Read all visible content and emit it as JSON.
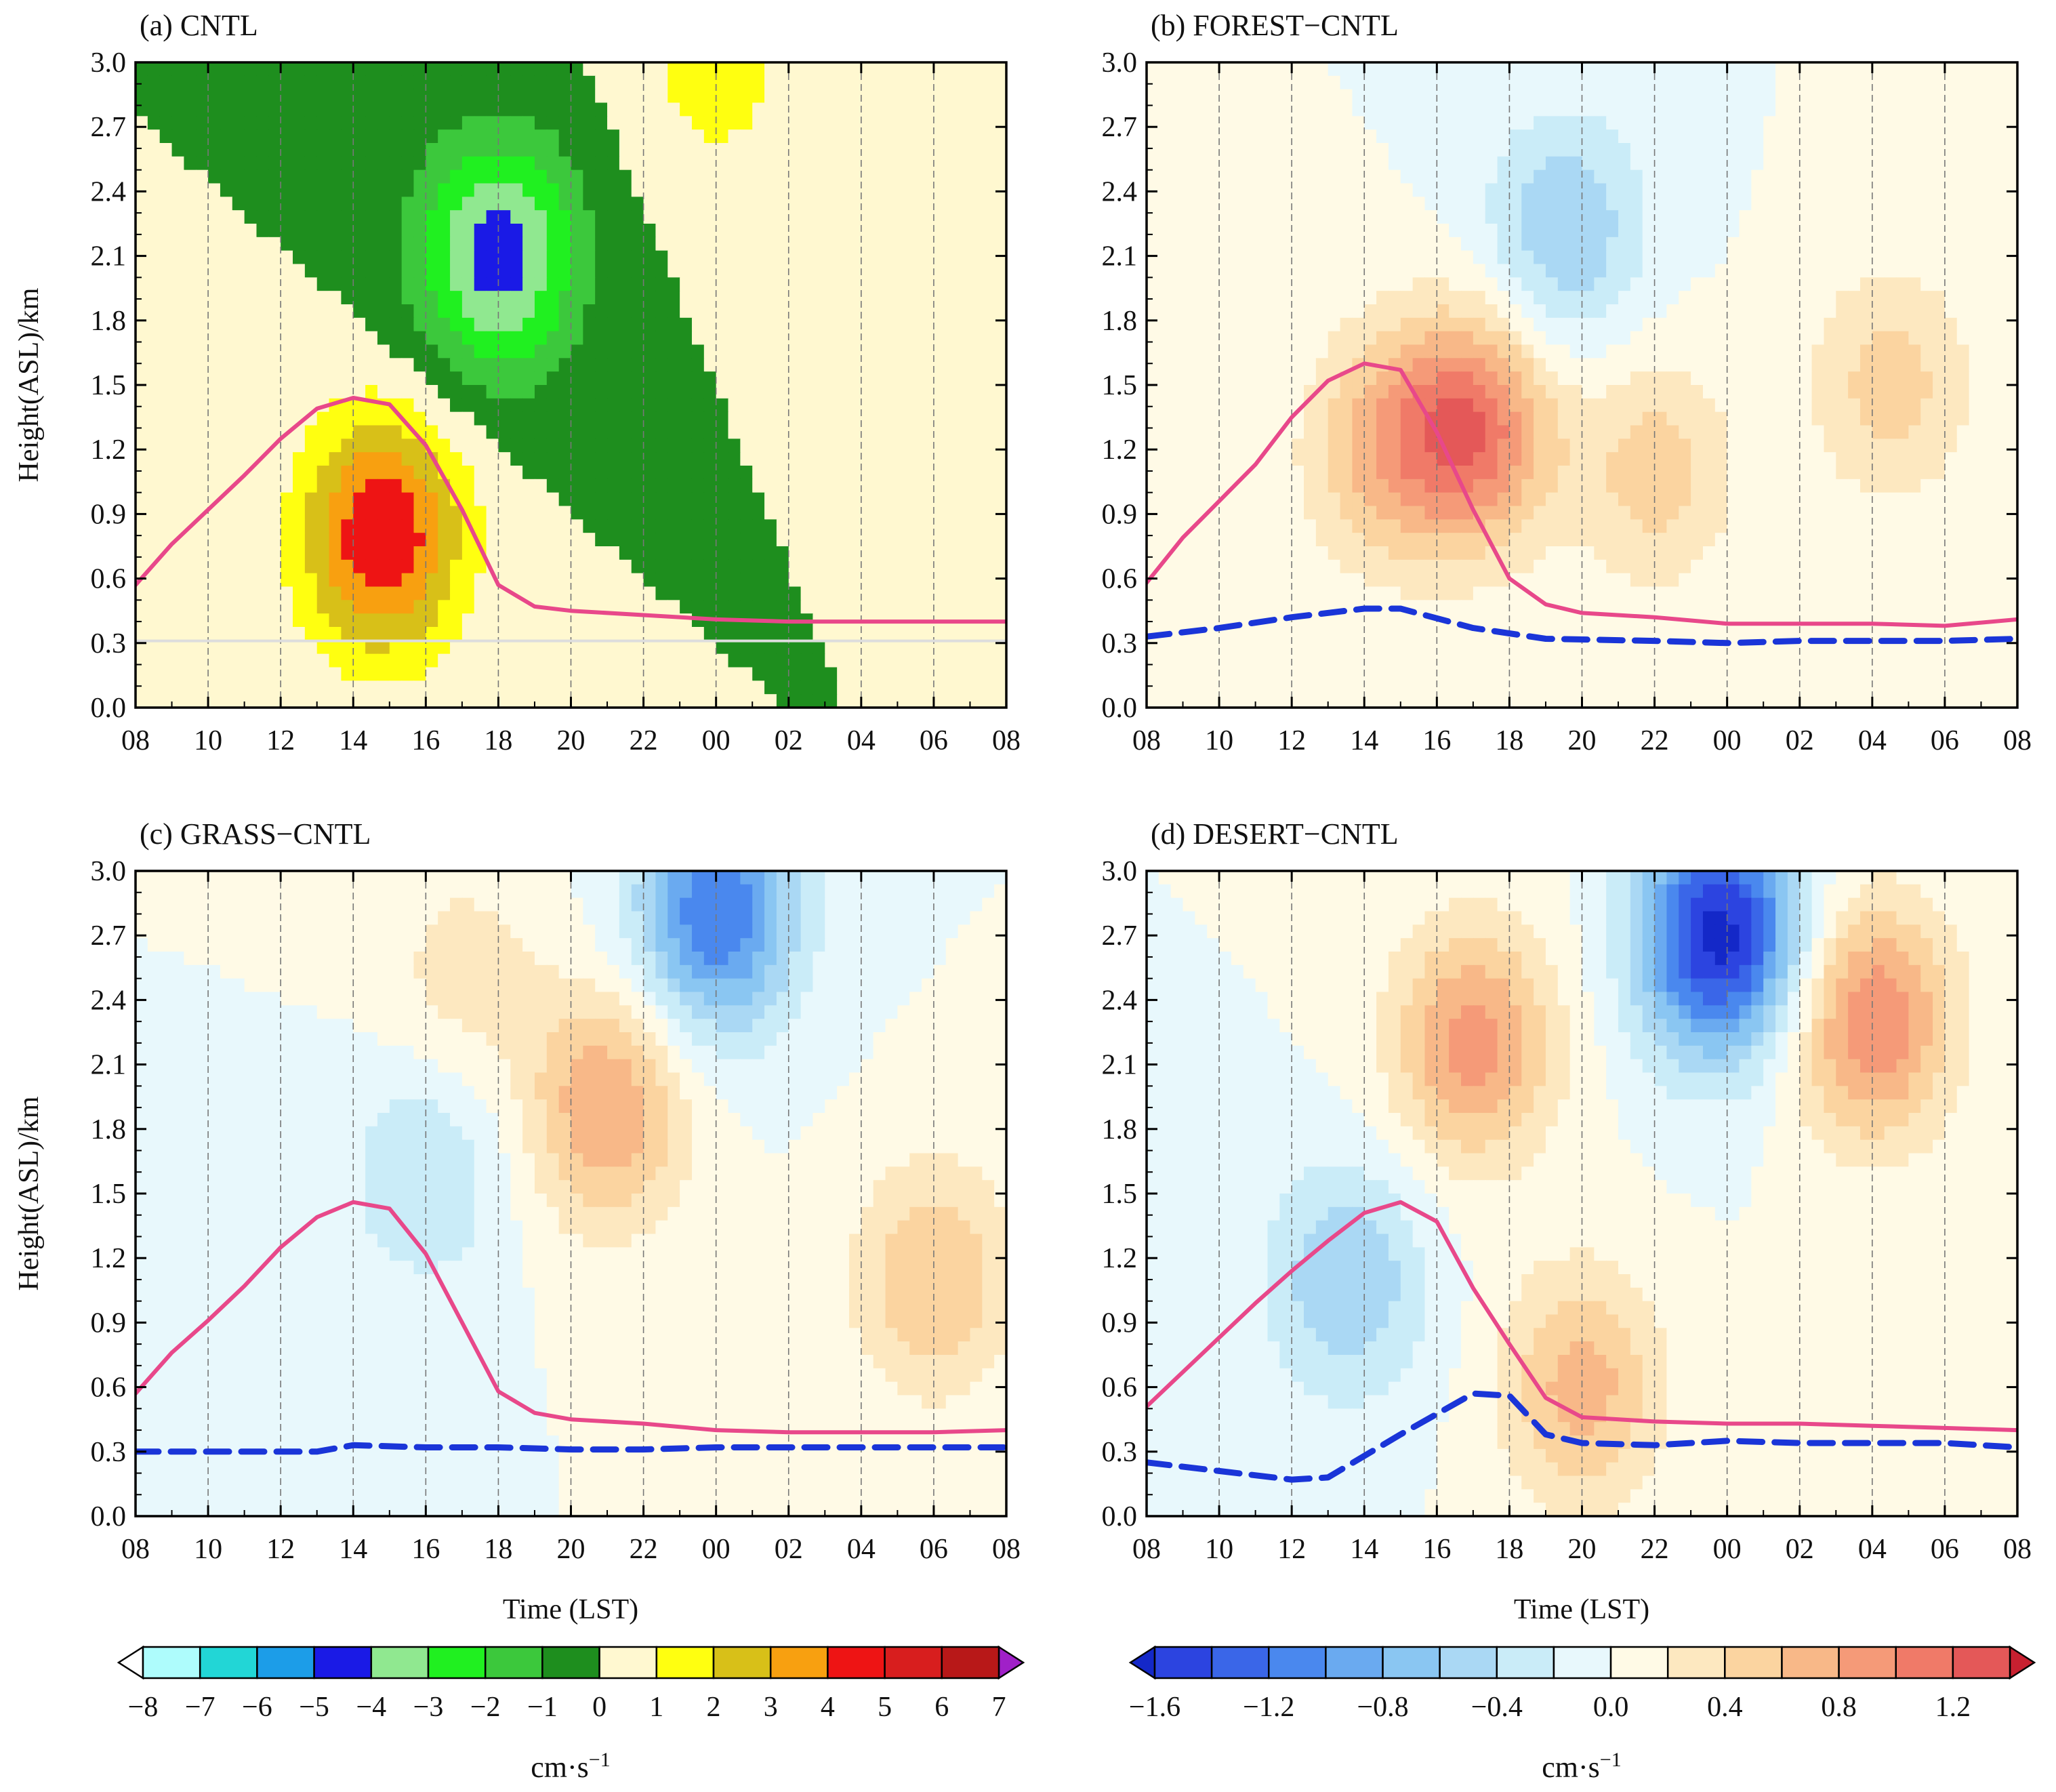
{
  "figure": {
    "time_axis_label": "Time (LST)",
    "height_axis_label": "Height(ASL)/km"
  },
  "chart_data": [
    {
      "type": "heatmap",
      "panel_title": "(a) CNTL",
      "xlabel": "",
      "ylabel": "Height(ASL)/km",
      "x_ticks": [
        "08",
        "10",
        "12",
        "14",
        "16",
        "18",
        "20",
        "22",
        "00",
        "02",
        "04",
        "06",
        "08"
      ],
      "x_hours": [
        0,
        2,
        4,
        6,
        8,
        10,
        12,
        14,
        16,
        18,
        20,
        22,
        24
      ],
      "y_ticks": [
        "0.0",
        "0.3",
        "0.6",
        "0.9",
        "1.2",
        "1.5",
        "1.8",
        "2.1",
        "2.4",
        "2.7",
        "3.0"
      ],
      "ylim": [
        0,
        3.0
      ],
      "xlim_hours": [
        0,
        24
      ],
      "colorbar": "w_full",
      "field_centers": [
        {
          "x": 6.8,
          "y": 0.8,
          "value": 5.0
        },
        {
          "x": 10.0,
          "y": 2.1,
          "value": -4.5
        },
        {
          "x": 16.0,
          "y": 3.0,
          "value": 1.5
        }
      ],
      "lines": [
        {
          "style": "solid",
          "color": "#e8488a",
          "x": [
            0,
            1,
            2,
            3,
            4,
            5,
            6,
            7,
            8,
            9,
            10,
            11,
            12,
            14,
            16,
            18,
            20,
            22,
            24
          ],
          "y": [
            0.57,
            0.76,
            0.92,
            1.08,
            1.25,
            1.39,
            1.44,
            1.41,
            1.22,
            0.92,
            0.57,
            0.47,
            0.45,
            0.43,
            0.41,
            0.4,
            0.4,
            0.4,
            0.4
          ]
        },
        {
          "style": "solid",
          "color": "#dddddd",
          "x": [
            0,
            24
          ],
          "y": [
            0.31,
            0.31
          ]
        }
      ]
    },
    {
      "type": "heatmap",
      "panel_title": "(b) FOREST−CNTL",
      "xlabel": "",
      "ylabel": "",
      "x_ticks": [
        "08",
        "10",
        "12",
        "14",
        "16",
        "18",
        "20",
        "22",
        "00",
        "02",
        "04",
        "06",
        "08"
      ],
      "x_hours": [
        0,
        2,
        4,
        6,
        8,
        10,
        12,
        14,
        16,
        18,
        20,
        22,
        24
      ],
      "y_ticks": [
        "0.0",
        "0.3",
        "0.6",
        "0.9",
        "1.2",
        "1.5",
        "1.8",
        "2.1",
        "2.4",
        "2.7",
        "3.0"
      ],
      "ylim": [
        0,
        3.0
      ],
      "xlim_hours": [
        0,
        24
      ],
      "colorbar": "diff",
      "field_centers": [
        {
          "x": 9.0,
          "y": 1.3,
          "value": 1.1
        },
        {
          "x": 6.5,
          "y": 1.2,
          "value": 0.6
        },
        {
          "x": 11.5,
          "y": 2.2,
          "value": -0.6
        },
        {
          "x": 14.0,
          "y": 1.1,
          "value": 0.5
        },
        {
          "x": 20.5,
          "y": 1.5,
          "value": 0.5
        }
      ],
      "lines": [
        {
          "style": "solid",
          "color": "#e8488a",
          "x": [
            0,
            1,
            2,
            3,
            4,
            5,
            6,
            7,
            8,
            9,
            10,
            11,
            12,
            14,
            16,
            18,
            20,
            22,
            24
          ],
          "y": [
            0.58,
            0.79,
            0.96,
            1.13,
            1.35,
            1.52,
            1.6,
            1.57,
            1.28,
            0.92,
            0.6,
            0.48,
            0.44,
            0.42,
            0.39,
            0.39,
            0.39,
            0.38,
            0.41
          ]
        },
        {
          "style": "dashed",
          "color": "#1a35d8",
          "x": [
            0,
            2,
            4,
            6,
            7,
            9,
            11,
            14,
            16,
            18,
            20,
            22,
            24
          ],
          "y": [
            0.33,
            0.37,
            0.42,
            0.46,
            0.46,
            0.37,
            0.32,
            0.31,
            0.3,
            0.31,
            0.31,
            0.31,
            0.32
          ]
        }
      ]
    },
    {
      "type": "heatmap",
      "panel_title": "(c) GRASS−CNTL",
      "xlabel": "Time (LST)",
      "ylabel": "Height(ASL)/km",
      "x_ticks": [
        "08",
        "10",
        "12",
        "14",
        "16",
        "18",
        "20",
        "22",
        "00",
        "02",
        "04",
        "06",
        "08"
      ],
      "x_hours": [
        0,
        2,
        4,
        6,
        8,
        10,
        12,
        14,
        16,
        18,
        20,
        22,
        24
      ],
      "y_ticks": [
        "0.0",
        "0.3",
        "0.6",
        "0.9",
        "1.2",
        "1.5",
        "1.8",
        "2.1",
        "2.4",
        "2.7",
        "3.0"
      ],
      "ylim": [
        0,
        3.0
      ],
      "xlim_hours": [
        0,
        24
      ],
      "colorbar": "diff",
      "field_centers": [
        {
          "x": 16.0,
          "y": 2.8,
          "value": -1.2
        },
        {
          "x": 13.0,
          "y": 1.9,
          "value": 0.8
        },
        {
          "x": 22.0,
          "y": 1.1,
          "value": 0.6
        },
        {
          "x": 8.0,
          "y": 1.6,
          "value": -0.4
        },
        {
          "x": 9.0,
          "y": 2.5,
          "value": 0.3
        }
      ],
      "lines": [
        {
          "style": "solid",
          "color": "#e8488a",
          "x": [
            0,
            1,
            2,
            3,
            4,
            5,
            6,
            7,
            8,
            9,
            10,
            11,
            12,
            14,
            16,
            18,
            20,
            22,
            24
          ],
          "y": [
            0.57,
            0.76,
            0.91,
            1.07,
            1.25,
            1.39,
            1.46,
            1.43,
            1.22,
            0.9,
            0.58,
            0.48,
            0.45,
            0.43,
            0.4,
            0.39,
            0.39,
            0.39,
            0.4
          ]
        },
        {
          "style": "dashed",
          "color": "#1a35d8",
          "x": [
            0,
            2,
            4,
            5,
            6,
            8,
            10,
            12,
            14,
            16,
            18,
            20,
            22,
            24
          ],
          "y": [
            0.3,
            0.3,
            0.3,
            0.3,
            0.33,
            0.32,
            0.32,
            0.31,
            0.31,
            0.32,
            0.32,
            0.32,
            0.32,
            0.32
          ]
        }
      ]
    },
    {
      "type": "heatmap",
      "panel_title": "(d) DESERT−CNTL",
      "xlabel": "Time (LST)",
      "ylabel": "",
      "x_ticks": [
        "08",
        "10",
        "12",
        "14",
        "16",
        "18",
        "20",
        "22",
        "00",
        "02",
        "04",
        "06",
        "08"
      ],
      "x_hours": [
        0,
        2,
        4,
        6,
        8,
        10,
        12,
        14,
        16,
        18,
        20,
        22,
        24
      ],
      "y_ticks": [
        "0.0",
        "0.3",
        "0.6",
        "0.9",
        "1.2",
        "1.5",
        "1.8",
        "2.1",
        "2.4",
        "2.7",
        "3.0"
      ],
      "ylim": [
        0,
        3.0
      ],
      "xlim_hours": [
        0,
        24
      ],
      "colorbar": "diff",
      "field_centers": [
        {
          "x": 15.8,
          "y": 2.7,
          "value": -1.7
        },
        {
          "x": 20.0,
          "y": 2.3,
          "value": 1.0
        },
        {
          "x": 9.0,
          "y": 2.2,
          "value": 0.9
        },
        {
          "x": 5.5,
          "y": 1.1,
          "value": -0.6
        },
        {
          "x": 12.0,
          "y": 0.6,
          "value": 0.7
        }
      ],
      "lines": [
        {
          "style": "solid",
          "color": "#e8488a",
          "x": [
            0,
            1,
            2,
            3,
            4,
            5,
            6,
            7,
            8,
            9,
            10,
            11,
            12,
            14,
            16,
            18,
            20,
            22,
            24
          ],
          "y": [
            0.51,
            0.67,
            0.83,
            0.99,
            1.14,
            1.28,
            1.41,
            1.46,
            1.37,
            1.06,
            0.8,
            0.55,
            0.46,
            0.44,
            0.43,
            0.43,
            0.42,
            0.41,
            0.4
          ]
        },
        {
          "style": "dashed",
          "color": "#1a35d8",
          "x": [
            0,
            2,
            4,
            5,
            7,
            9,
            10,
            11,
            12,
            14,
            16,
            18,
            20,
            22,
            24
          ],
          "y": [
            0.25,
            0.21,
            0.17,
            0.18,
            0.38,
            0.57,
            0.56,
            0.38,
            0.34,
            0.33,
            0.35,
            0.34,
            0.34,
            0.34,
            0.32
          ]
        }
      ]
    }
  ],
  "colorbars": {
    "w_full": {
      "unit_base": "cm·s",
      "unit_exp": "−1",
      "tick_labels": [
        "−8",
        "−7",
        "−6",
        "−5",
        "−4",
        "−3",
        "−2",
        "−1",
        "0",
        "1",
        "2",
        "3",
        "4",
        "5",
        "6",
        "7"
      ],
      "bounds": [
        -8,
        -7,
        -6,
        -5,
        -4,
        -3,
        -2,
        -1,
        0,
        1,
        2,
        3,
        4,
        5,
        6,
        7
      ],
      "colors": [
        "#aefcfc",
        "#22d6d6",
        "#1c9de8",
        "#1a1ae6",
        "#90e890",
        "#20f020",
        "#3cc83c",
        "#1e8e1e",
        "#fff8d0",
        "#ffff10",
        "#d8c018",
        "#f8a010",
        "#ee1414",
        "#d81e1e",
        "#b81818"
      ],
      "under_color": "#ffffff",
      "over_color": "#a020c8"
    },
    "diff": {
      "unit_base": "cm·s",
      "unit_exp": "−1",
      "tick_labels": [
        "−1.6",
        "−1.2",
        "−0.8",
        "−0.4",
        "0.0",
        "0.4",
        "0.8",
        "1.2"
      ],
      "tick_values": [
        -1.6,
        -1.2,
        -0.8,
        -0.4,
        0.0,
        0.4,
        0.8,
        1.2
      ],
      "bounds": [
        -1.6,
        -1.4,
        -1.2,
        -1.0,
        -0.8,
        -0.6,
        -0.4,
        -0.2,
        0.0,
        0.2,
        0.4,
        0.6,
        0.8,
        1.0,
        1.2,
        1.4
      ],
      "colors": [
        "#2c44e0",
        "#3a66e8",
        "#4a88ee",
        "#6aaaf0",
        "#8ac6f2",
        "#aad8f4",
        "#caecf8",
        "#e8f8fc",
        "#fffae6",
        "#fde8c0",
        "#fbd4a0",
        "#f8b888",
        "#f59a78",
        "#f07a68",
        "#e45858"
      ],
      "under_color": "#1428c8",
      "over_color": "#c82030"
    }
  }
}
